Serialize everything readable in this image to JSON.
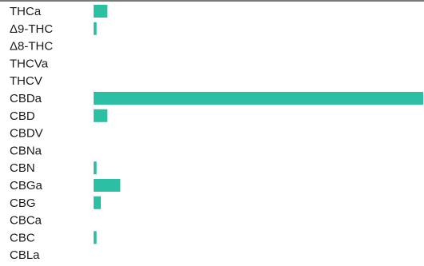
{
  "chart_data": {
    "type": "bar",
    "orientation": "horizontal",
    "categories": [
      "THCa",
      "Δ9-THC",
      "Δ8-THC",
      "THCVa",
      "THCV",
      "CBDa",
      "CBD",
      "CBDV",
      "CBNa",
      "CBN",
      "CBGa",
      "CBG",
      "CBCa",
      "CBC",
      "CBLa"
    ],
    "values": [
      4.2,
      0.9,
      0,
      0,
      0,
      100,
      4.2,
      0,
      0,
      0.9,
      8.1,
      2.2,
      0,
      0.9,
      0
    ],
    "xlim": [
      0,
      100
    ],
    "bar_color": "#2bbfa4",
    "grid": false,
    "legend": "none"
  }
}
